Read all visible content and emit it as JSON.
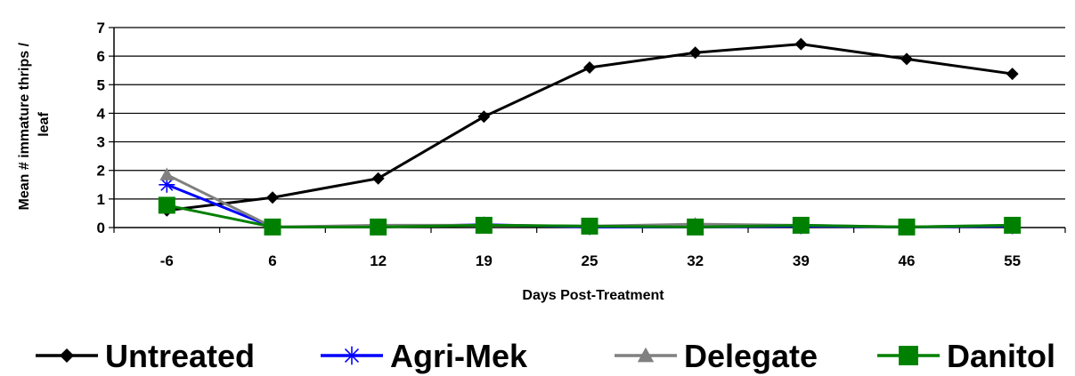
{
  "chart_data": {
    "type": "line",
    "xlabel": "Days Post-Treatment",
    "ylabel": "Mean # immature thrips / leaf",
    "categories": [
      "-6",
      "6",
      "12",
      "19",
      "25",
      "32",
      "39",
      "46",
      "55"
    ],
    "ylim": [
      0,
      7
    ],
    "yticks": [
      0,
      1,
      2,
      3,
      4,
      5,
      6,
      7
    ],
    "grid": "horizontal",
    "legend_position": "bottom",
    "series": [
      {
        "name": "Untreated",
        "color": "#000000",
        "marker": "diamond",
        "values": [
          0.6,
          1.05,
          1.72,
          3.88,
          5.6,
          6.12,
          6.42,
          5.9,
          5.38
        ]
      },
      {
        "name": "Agri-Mek",
        "color": "#0000ff",
        "marker": "asterisk",
        "values": [
          1.5,
          0.02,
          0.02,
          0.1,
          0.02,
          0.02,
          0.05,
          0.02,
          0.05
        ]
      },
      {
        "name": "Delegate",
        "color": "#808080",
        "marker": "triangle",
        "values": [
          1.85,
          0.02,
          0.08,
          0.08,
          0.05,
          0.12,
          0.08,
          0.02,
          0.08
        ]
      },
      {
        "name": "Danitol",
        "color": "#008000",
        "marker": "square",
        "values": [
          0.78,
          0.02,
          0.02,
          0.08,
          0.05,
          0.02,
          0.08,
          0.02,
          0.08
        ]
      }
    ]
  }
}
